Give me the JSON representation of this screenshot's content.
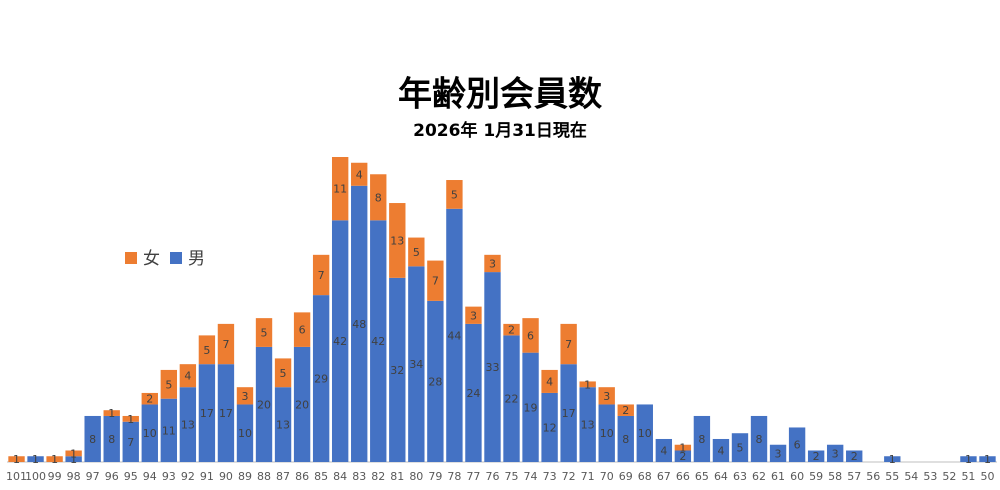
{
  "chart_data": {
    "type": "stacked_bar",
    "title": "年齢別会員数",
    "subtitle": "2026年 1月31日現在",
    "categories": [
      "101",
      "100",
      "99",
      "98",
      "97",
      "96",
      "95",
      "94",
      "93",
      "92",
      "91",
      "90",
      "89",
      "88",
      "87",
      "86",
      "85",
      "84",
      "83",
      "82",
      "81",
      "80",
      "79",
      "78",
      "77",
      "76",
      "75",
      "74",
      "73",
      "72",
      "71",
      "70",
      "69",
      "68",
      "67",
      "66",
      "65",
      "64",
      "63",
      "62",
      "61",
      "60",
      "59",
      "58",
      "57",
      "56",
      "55",
      "54",
      "53",
      "52",
      "51",
      "50"
    ],
    "series": [
      {
        "name": "男",
        "color": "#4472c4",
        "values": [
          0,
          1,
          0,
          1,
          8,
          8,
          7,
          10,
          11,
          13,
          17,
          17,
          10,
          20,
          13,
          20,
          29,
          42,
          48,
          42,
          32,
          34,
          28,
          44,
          24,
          33,
          22,
          19,
          12,
          17,
          13,
          10,
          8,
          10,
          4,
          2,
          8,
          4,
          5,
          8,
          3,
          6,
          2,
          3,
          2,
          0,
          1,
          0,
          0,
          0,
          1,
          1
        ]
      },
      {
        "name": "女",
        "color": "#ed7d31",
        "values": [
          1,
          0,
          1,
          1,
          0,
          1,
          1,
          2,
          5,
          4,
          5,
          7,
          3,
          5,
          5,
          6,
          7,
          11,
          4,
          8,
          13,
          5,
          7,
          5,
          3,
          3,
          2,
          6,
          4,
          7,
          1,
          3,
          2,
          0,
          0,
          1,
          0,
          0,
          0,
          0,
          0,
          0,
          0,
          0,
          0,
          0,
          0,
          0,
          0,
          0,
          0,
          0
        ]
      }
    ],
    "legend_position": "left"
  }
}
